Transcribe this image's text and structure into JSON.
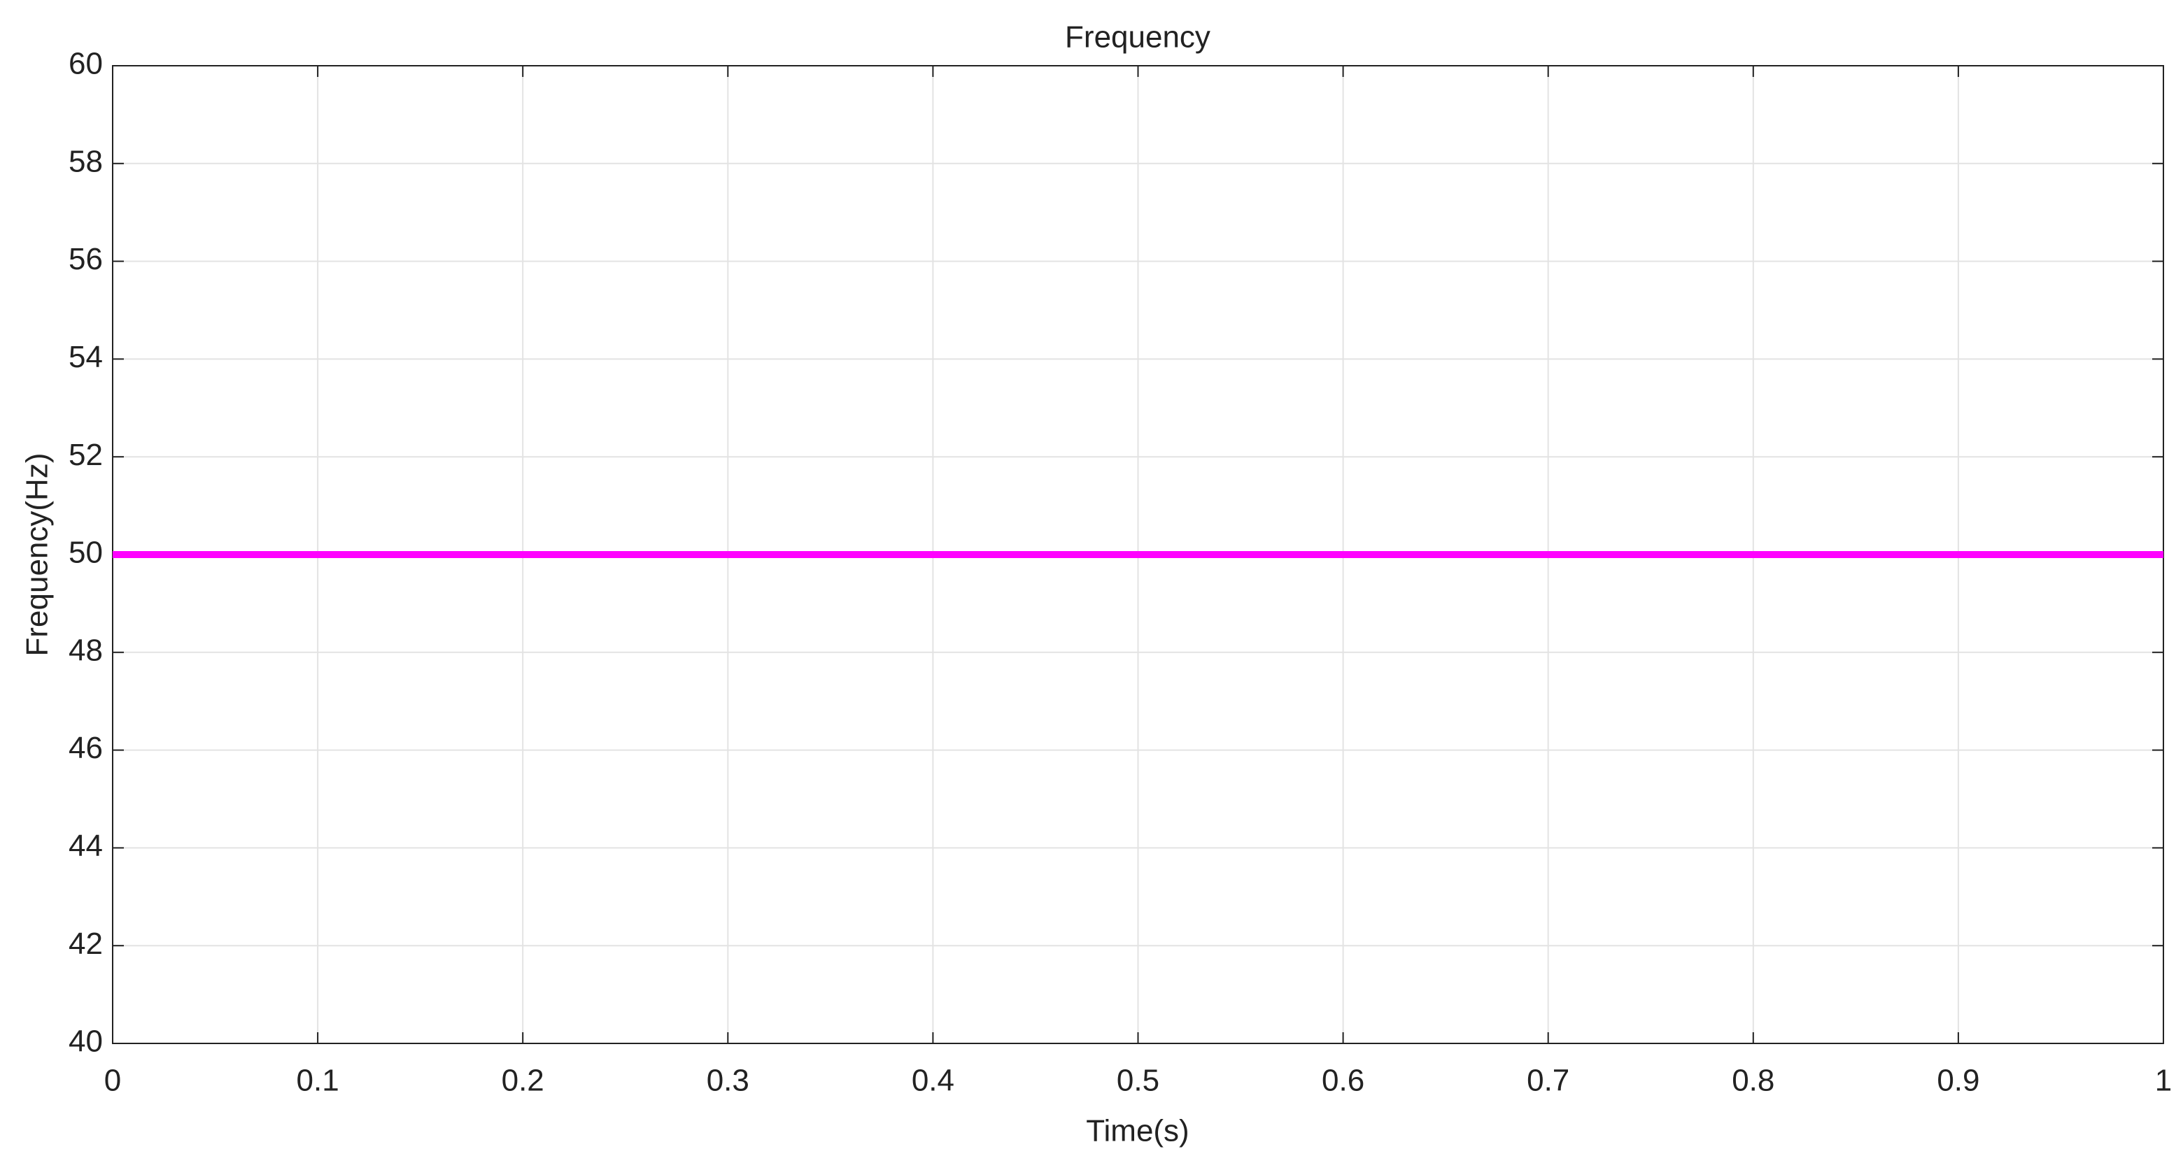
{
  "chart_data": {
    "type": "line",
    "title": "Frequency",
    "x_label": "Time(s)",
    "y_label": "Frequency(Hz)",
    "x": [
      0,
      1
    ],
    "series": [
      {
        "color": "#ff00ff",
        "values": [
          50,
          50
        ]
      }
    ],
    "xlim": [
      0,
      1
    ],
    "xticks": [
      0,
      0.1,
      0.2,
      0.3,
      0.4,
      0.5,
      0.6,
      0.7,
      0.8,
      0.9,
      1
    ],
    "ylim": [
      40,
      60
    ],
    "yticks": [
      40,
      42,
      44,
      46,
      48,
      50,
      52,
      54,
      56,
      58,
      60
    ],
    "grid": true
  }
}
